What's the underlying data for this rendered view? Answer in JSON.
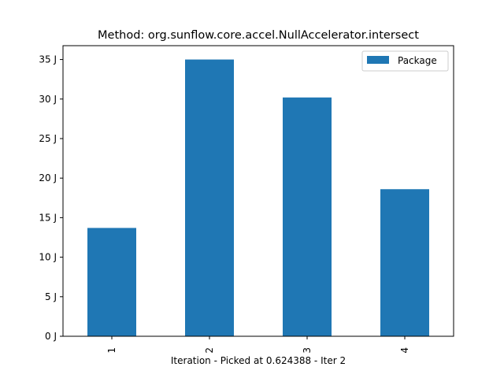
{
  "chart_data": {
    "type": "bar",
    "title": "Method: org.sunflow.core.accel.NullAccelerator.intersect",
    "xlabel": "Iteration - Picked at 0.624388 - Iter 2",
    "ylabel": "",
    "categories": [
      "1",
      "2",
      "3",
      "4"
    ],
    "series": [
      {
        "name": "Package",
        "values": [
          13.7,
          35.0,
          30.2,
          18.6
        ],
        "color": "#1f77b4"
      }
    ],
    "ylim": [
      0,
      36.75
    ],
    "yticks": [
      0,
      5,
      10,
      15,
      20,
      25,
      30,
      35
    ],
    "ytick_labels": [
      "0 J",
      "5 J",
      "10 J",
      "15 J",
      "20 J",
      "25 J",
      "30 J",
      "35 J"
    ],
    "grid": false,
    "legend_position": "top-right"
  }
}
